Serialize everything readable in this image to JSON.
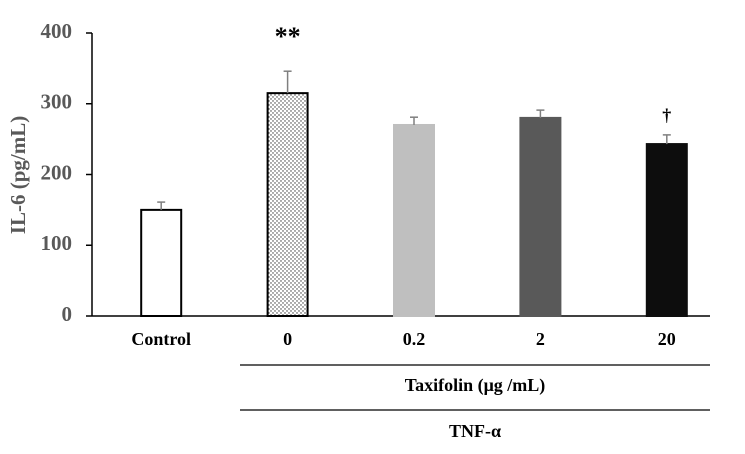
{
  "chart_data": {
    "type": "bar",
    "y_label": "IL-6 (pg/mL)",
    "categories": [
      "Control",
      "0",
      "0.2",
      "2",
      "20"
    ],
    "values": [
      150,
      315,
      270,
      280,
      243
    ],
    "errors": [
      11,
      31,
      11,
      11,
      13
    ],
    "colors": [
      "#ffffff",
      "#ffffff",
      "#bfbfbf",
      "#595959",
      "#0d0d0d"
    ],
    "edgecolors": [
      "#000000",
      "#000000",
      "#bfbfbf",
      "#595959",
      "#0d0d0d"
    ],
    "hatch": [
      null,
      "dots",
      null,
      null,
      null
    ],
    "annotations": [
      {
        "category": "0",
        "text": "**"
      },
      {
        "category": "20",
        "text": "†"
      }
    ],
    "x_group_label": "Taxifolin (μg /mL)",
    "x_group_label_2": "TNF-α",
    "ylim": [
      0,
      400
    ],
    "yticks": [
      0,
      100,
      200,
      300,
      400
    ],
    "grid": false
  }
}
